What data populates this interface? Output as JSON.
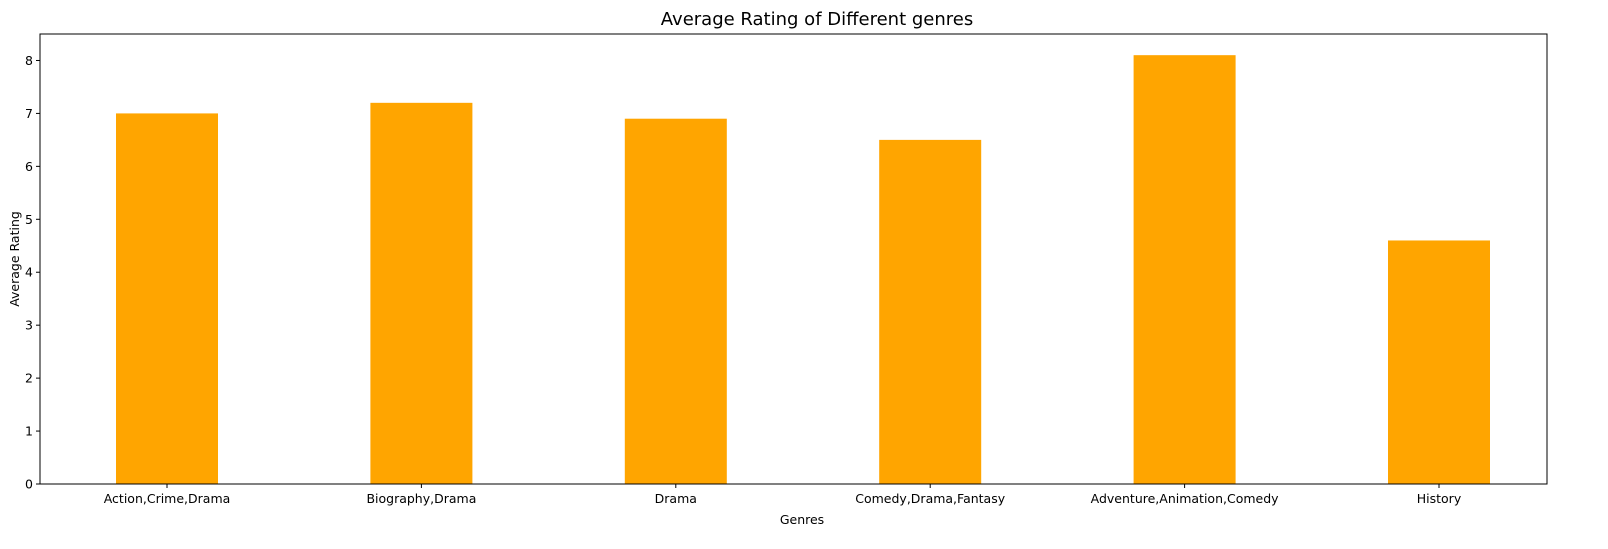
{
  "chart_data": {
    "type": "bar",
    "title": "Average Rating of Different genres",
    "xlabel": "Genres",
    "ylabel": "Average Rating",
    "categories": [
      "Action,Crime,Drama",
      "Biography,Drama",
      "Drama",
      "Comedy,Drama,Fantasy",
      "Adventure,Animation,Comedy",
      "History"
    ],
    "values": [
      7.0,
      7.2,
      6.9,
      6.5,
      8.1,
      4.6
    ],
    "ylim": [
      0,
      8.5
    ],
    "yticks": [
      "0",
      "1",
      "2",
      "3",
      "4",
      "5",
      "6",
      "7",
      "8"
    ],
    "grid": false,
    "legend": "none",
    "bar_color": "#ffa500"
  }
}
